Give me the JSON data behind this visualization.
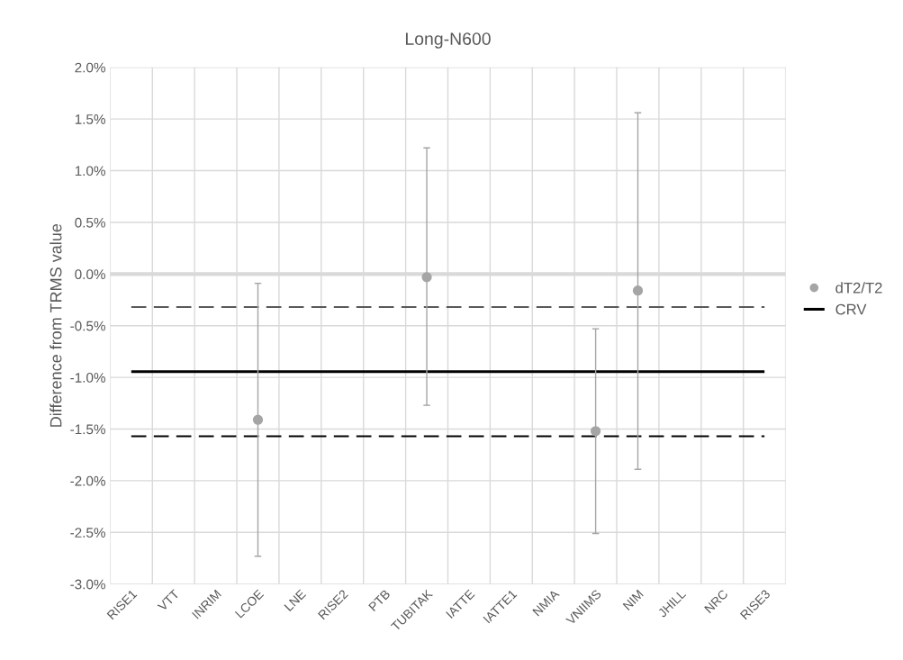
{
  "chart_data": {
    "type": "scatter",
    "title": "Long-N600",
    "ylabel": "Difference from TRMS value",
    "categories": [
      "RISE1",
      "VTT",
      "INRIM",
      "LCOE",
      "LNE",
      "RISE2",
      "PTB",
      "TUBITAK",
      "IATTE",
      "IATTE1",
      "NMIA",
      "VNIIMS",
      "NIM",
      "JHILL",
      "NRC",
      "RISE3"
    ],
    "series": [
      {
        "name": "dT2/T2",
        "color": "#a5a5a5",
        "values": [
          null,
          null,
          null,
          -1.41,
          null,
          null,
          null,
          -0.03,
          null,
          null,
          null,
          -1.52,
          -0.16,
          null,
          null,
          null
        ],
        "errors": [
          null,
          null,
          null,
          [
            -2.73,
            -0.09
          ],
          null,
          null,
          null,
          [
            -1.27,
            1.22
          ],
          null,
          null,
          null,
          [
            -2.51,
            -0.53
          ],
          [
            -1.89,
            1.56
          ],
          null,
          null,
          null
        ]
      }
    ],
    "ref_lines": [
      {
        "axis": "y",
        "value": 0,
        "color": "#d9d9d9",
        "line_style": "solid"
      },
      {
        "axis": "y",
        "value": -0.945,
        "label": "CRV",
        "color": "#000000",
        "line_style": "solid"
      },
      {
        "axis": "y",
        "value": -0.32,
        "color": "#595959",
        "line_style": "dashed"
      },
      {
        "axis": "y",
        "value": -1.57,
        "color": "#000000",
        "line_style": "dashed"
      }
    ],
    "ylim": [
      -3.0,
      2.0
    ],
    "yticks": [
      {
        "value": -3.0,
        "label": "-3.0%"
      },
      {
        "value": -2.5,
        "label": "-2.5%"
      },
      {
        "value": -2.0,
        "label": "-2.0%"
      },
      {
        "value": -1.5,
        "label": "-1.5%"
      },
      {
        "value": -1.0,
        "label": "-1.0%"
      },
      {
        "value": -0.5,
        "label": "-0.5%"
      },
      {
        "value": 0.0,
        "label": "0.0%"
      },
      {
        "value": 0.5,
        "label": "0.5%"
      },
      {
        "value": 1.0,
        "label": "1.0%"
      },
      {
        "value": 1.5,
        "label": "1.5%"
      },
      {
        "value": 2.0,
        "label": "2.0%"
      }
    ],
    "grid": true,
    "legend": "right",
    "marker": "circle"
  }
}
